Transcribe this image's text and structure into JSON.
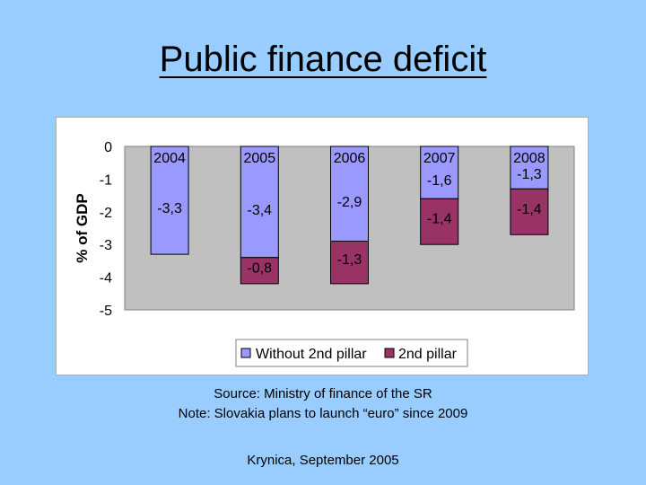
{
  "slide": {
    "title": "Public finance deficit",
    "source_line": "Source: Ministry of finance of the SR",
    "note_line": "Note: Slovakia plans to launch “euro” since 2009",
    "footer": "Krynica, September 2005"
  },
  "colors": {
    "background": "#99ccff",
    "plot_area": "#c0c0c0",
    "without_pillar": "#9999ff",
    "second_pillar": "#993366"
  },
  "chart_data": {
    "type": "bar",
    "stacked": true,
    "categories": [
      "2004",
      "2005",
      "2006",
      "2007",
      "2008"
    ],
    "series": [
      {
        "name": "Without 2nd pillar",
        "values": [
          -3.3,
          -3.4,
          -2.9,
          -1.6,
          -1.3
        ],
        "labels": [
          "-3,3",
          "-3,4",
          "-2,9",
          "-1,6",
          "-1,3"
        ]
      },
      {
        "name": "2nd pillar",
        "values": [
          0,
          -0.8,
          -1.3,
          -1.4,
          -1.4
        ],
        "labels": [
          "",
          "-0,8",
          "-1,3",
          "-1,4",
          "-1,4"
        ]
      }
    ],
    "ylabel": "% of GDP",
    "ylim": [
      -5,
      0
    ],
    "yticks": [
      "0",
      "-1",
      "-2",
      "-3",
      "-4",
      "-5"
    ],
    "grid": false,
    "legend_position": "bottom"
  }
}
